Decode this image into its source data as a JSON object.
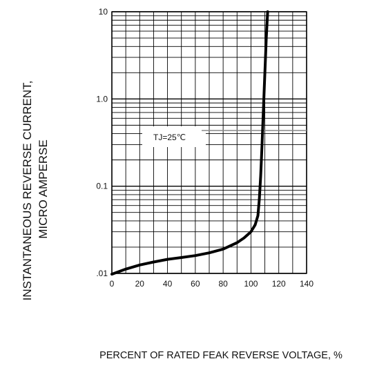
{
  "chart_data": {
    "type": "line",
    "title": "",
    "xlabel": "PERCENT OF RATED FEAK REVERSE VOLTAGE, %",
    "ylabel_lines": [
      "INSTANTANEOUS REVERSE CURRENT,",
      "MICRO AMPERSE"
    ],
    "yscale": "log",
    "xlim": [
      0,
      140
    ],
    "ylim": [
      0.01,
      10
    ],
    "x_ticks": [
      "0",
      "20",
      "40",
      "60",
      "80",
      "100",
      "120",
      "140"
    ],
    "y_ticks": [
      ".01",
      "0.1",
      "1.0",
      "10"
    ],
    "grid": true,
    "annotation": "TJ=25℃",
    "series": [
      {
        "x": [
          0,
          10,
          20,
          30,
          40,
          50,
          60,
          70,
          80,
          90,
          95,
          100,
          103,
          105,
          106,
          107,
          108,
          109,
          110,
          111,
          112
        ],
        "y": [
          0.0098,
          0.0112,
          0.0125,
          0.0135,
          0.0145,
          0.0152,
          0.016,
          0.0172,
          0.019,
          0.0225,
          0.0255,
          0.03,
          0.036,
          0.046,
          0.07,
          0.13,
          0.3,
          0.8,
          2.0,
          5.0,
          10.0
        ]
      }
    ],
    "colors": {
      "curve": "#000000",
      "grid": "#000000",
      "annotation_line": "#888888"
    }
  }
}
